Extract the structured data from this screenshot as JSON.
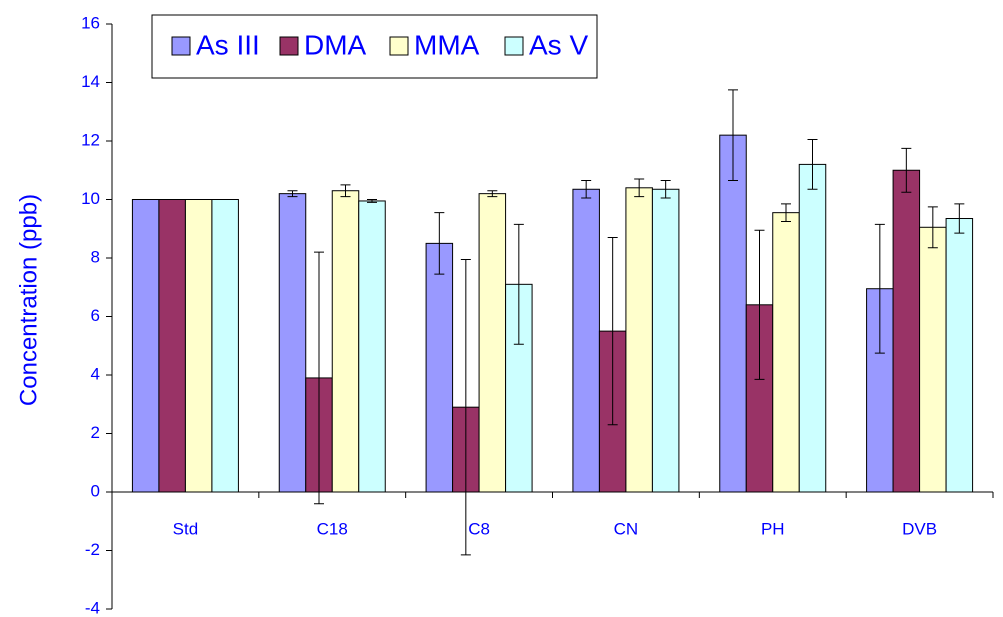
{
  "chart_data": {
    "type": "bar",
    "y_label": "Concentration (ppb)",
    "categories": [
      "Std",
      "C18",
      "C8",
      "CN",
      "PH",
      "DVB"
    ],
    "series": [
      {
        "name": "As III",
        "color": "#9999ff",
        "values": [
          10,
          10.2,
          8.5,
          10.35,
          12.2,
          6.95
        ],
        "errors": [
          0,
          0.1,
          1.05,
          0.3,
          1.55,
          2.2
        ]
      },
      {
        "name": "DMA",
        "color": "#993366",
        "values": [
          10,
          3.9,
          2.9,
          5.5,
          6.4,
          11.0
        ],
        "errors": [
          0,
          4.3,
          5.05,
          3.2,
          2.55,
          0.75
        ]
      },
      {
        "name": "MMA",
        "color": "#ffffcc",
        "values": [
          10,
          10.3,
          10.2,
          10.4,
          9.55,
          9.05
        ],
        "errors": [
          0,
          0.2,
          0.1,
          0.3,
          0.3,
          0.7
        ]
      },
      {
        "name": "As V",
        "color": "#ccffff",
        "values": [
          10,
          9.95,
          7.1,
          10.35,
          11.2,
          9.35
        ],
        "errors": [
          0,
          0.05,
          2.05,
          0.3,
          0.85,
          0.5
        ]
      }
    ],
    "ylim": [
      -4,
      16
    ],
    "yticks": [
      -4,
      -2,
      0,
      2,
      4,
      6,
      8,
      10,
      12,
      14,
      16
    ],
    "legend": "top"
  }
}
